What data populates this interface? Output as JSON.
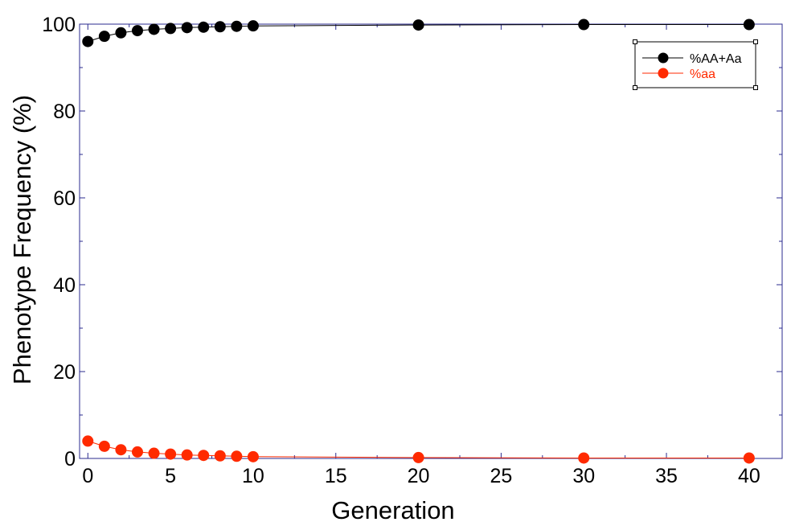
{
  "chart_data": {
    "type": "line",
    "xlabel": "Generation",
    "ylabel": "Phenotype Frequency (%)",
    "xlim": [
      -0.5,
      42
    ],
    "ylim": [
      0,
      100
    ],
    "xticks": [
      "0",
      "5",
      "10",
      "15",
      "20",
      "25",
      "30",
      "35",
      "40"
    ],
    "yticks": [
      "0",
      "20",
      "40",
      "60",
      "80",
      "100"
    ],
    "x": [
      0,
      1,
      2,
      3,
      4,
      5,
      6,
      7,
      8,
      9,
      10,
      20,
      30,
      40
    ],
    "series": [
      {
        "name": "%AA+Aa",
        "color": "#000000",
        "values": [
          96.0,
          97.2,
          98.0,
          98.5,
          98.8,
          99.0,
          99.2,
          99.3,
          99.4,
          99.5,
          99.6,
          99.8,
          99.9,
          99.9
        ]
      },
      {
        "name": "%aa",
        "color": "#ff2a00",
        "values": [
          4.0,
          2.8,
          2.0,
          1.5,
          1.2,
          1.0,
          0.8,
          0.7,
          0.6,
          0.5,
          0.4,
          0.2,
          0.1,
          0.1
        ]
      }
    ],
    "grid": false,
    "legend_position": "top-right"
  }
}
